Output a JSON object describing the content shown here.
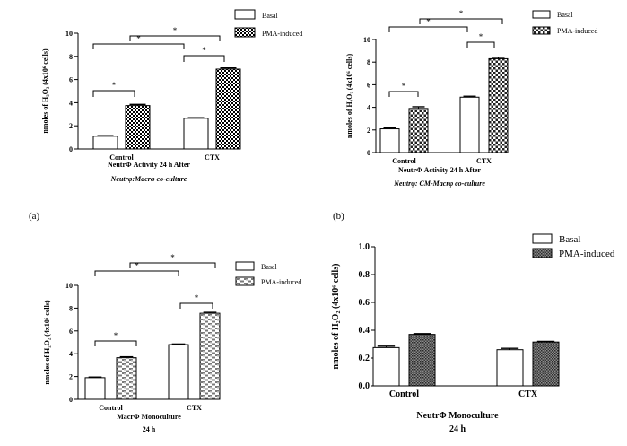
{
  "colors": {
    "axis": "#000000",
    "basal_fill": "#ffffff",
    "pma_fill": "#000000",
    "background": "#ffffff"
  },
  "panel_labels": [
    "(a)",
    "(b)"
  ],
  "legend": {
    "basal": "Basal",
    "pma": "PMA-induced"
  },
  "chart_data": [
    {
      "type": "bar",
      "ylabel": "nmoles of H₂O₂ (4x10⁶ cells)",
      "ylim": [
        0,
        10
      ],
      "yticks": [
        "0",
        "2",
        "4",
        "6",
        "8",
        "10"
      ],
      "categories": [
        "Control",
        "CTX"
      ],
      "series": [
        {
          "name": "Basal",
          "values": [
            1.1,
            2.65
          ],
          "errors": [
            0.05,
            0.05
          ]
        },
        {
          "name": "PMA-induced",
          "values": [
            3.75,
            6.9
          ],
          "errors": [
            0.1,
            0.1
          ]
        }
      ],
      "caption_lines": [
        "NeutrΦ  Activity 24 h After",
        "Neutrφ:Macrφ  co-culture"
      ],
      "significance": "*",
      "legend_position": "top-right",
      "grid": false
    },
    {
      "type": "bar",
      "ylabel": "nmoles of H₂O₂ (4x10⁶ cells)",
      "ylim": [
        0,
        10
      ],
      "yticks": [
        "0",
        "2",
        "4",
        "6",
        "8",
        "10"
      ],
      "categories": [
        "Control",
        "CTX"
      ],
      "series": [
        {
          "name": "Basal",
          "values": [
            2.1,
            4.9
          ],
          "errors": [
            0.08,
            0.08
          ]
        },
        {
          "name": "PMA-induced",
          "values": [
            3.9,
            8.3
          ],
          "errors": [
            0.15,
            0.12
          ]
        }
      ],
      "caption_lines": [
        "NeutrΦ Activity 24 h After",
        "Neutrφ: CM-Macrφ  co-culture"
      ],
      "significance": "*",
      "legend_position": "top-right",
      "grid": false
    },
    {
      "type": "bar",
      "ylabel": "nmoles of H₂O₂ (4x10⁶ cells)",
      "ylim": [
        0,
        10
      ],
      "yticks": [
        "0",
        "2",
        "4",
        "6",
        "8",
        "10"
      ],
      "categories": [
        "Control",
        "CTX"
      ],
      "series": [
        {
          "name": "Basal",
          "values": [
            1.9,
            4.8
          ],
          "errors": [
            0.05,
            0.05
          ]
        },
        {
          "name": "PMA-induced",
          "values": [
            3.65,
            7.55
          ],
          "errors": [
            0.08,
            0.08
          ]
        }
      ],
      "caption_lines": [
        "MacrΦ Monoculture",
        "24 h"
      ],
      "significance": "*",
      "legend_position": "top-right",
      "grid": false
    },
    {
      "type": "bar",
      "ylabel": "nmoles of H₂O₂ (4x10⁶ cells)",
      "ylim": [
        0,
        1.0
      ],
      "yticks": [
        "0.0",
        "0.2",
        "0.4",
        "0.6",
        "0.8",
        "1.0"
      ],
      "categories": [
        "Control",
        "CTX"
      ],
      "series": [
        {
          "name": "Basal",
          "values": [
            0.275,
            0.26
          ],
          "errors": [
            0.01,
            0.01
          ]
        },
        {
          "name": "PMA-induced",
          "values": [
            0.37,
            0.315
          ],
          "errors": [
            0.005,
            0.005
          ]
        }
      ],
      "caption_lines": [
        "NeutrΦ Monoculture",
        "24 h"
      ],
      "significance": "",
      "legend_position": "top-right",
      "grid": false
    }
  ]
}
